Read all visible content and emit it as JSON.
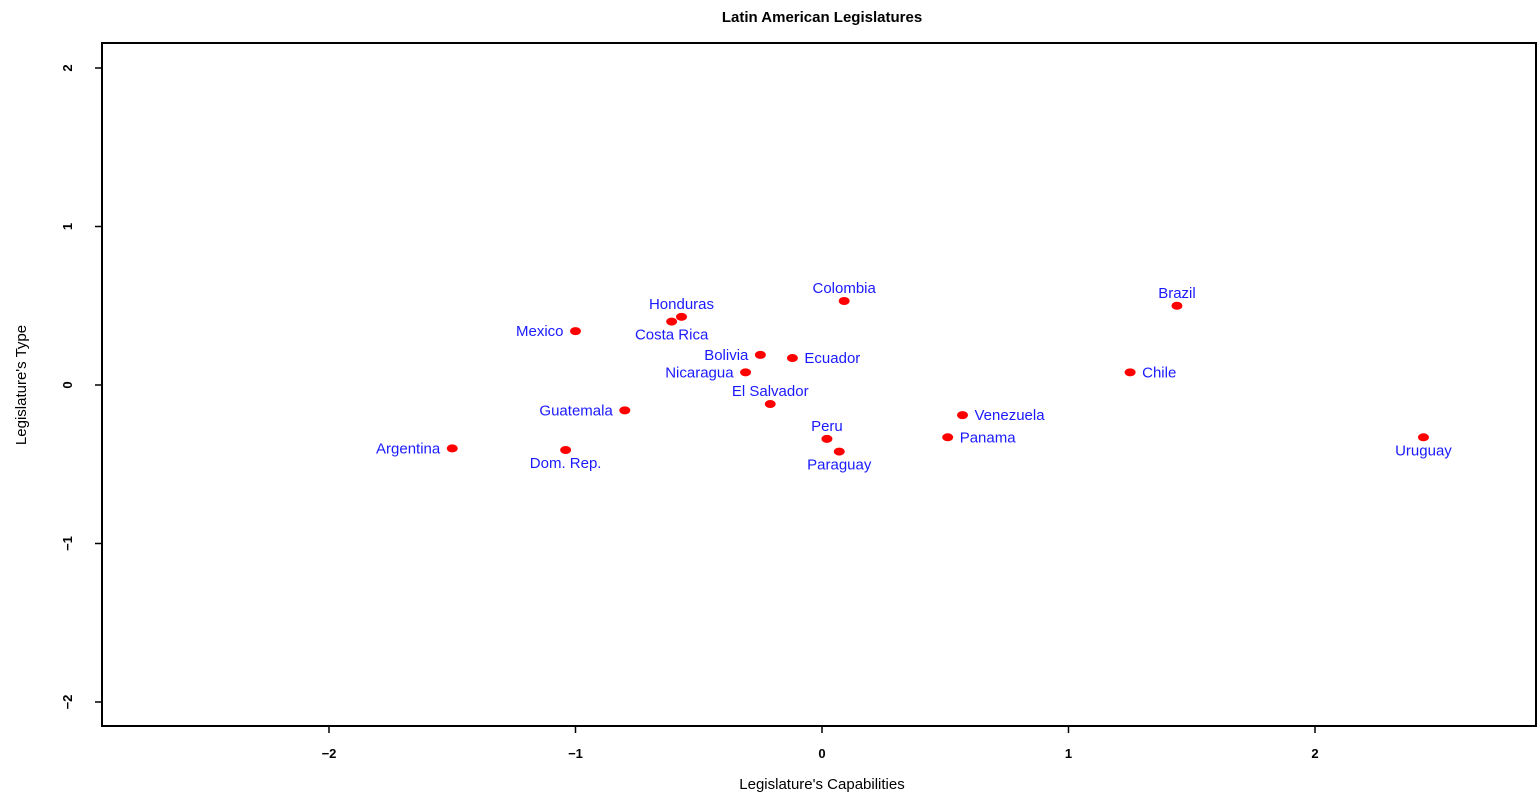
{
  "chart_data": {
    "type": "scatter",
    "title": "Latin American Legislatures",
    "xlabel": "Legislature's Capabilities",
    "ylabel": "Legislature's Type",
    "xlim": [
      -2.9,
      2.9
    ],
    "ylim": [
      -2.15,
      2.15
    ],
    "x_ticks": [
      -2,
      -1,
      0,
      1,
      2
    ],
    "y_ticks": [
      -2,
      -1,
      0,
      1,
      2
    ],
    "x_tick_labels": [
      "−2",
      "−1",
      "0",
      "1",
      "2"
    ],
    "y_tick_labels": [
      "−2",
      "−1",
      "0",
      "1",
      "2"
    ],
    "grid": false,
    "point_color": "#ff0000",
    "label_color": "#1a1aff",
    "points": [
      {
        "label": "Argentina",
        "x": -1.5,
        "y": -0.4,
        "label_pos": "left"
      },
      {
        "label": "Dom. Rep.",
        "x": -1.04,
        "y": -0.41,
        "label_pos": "below"
      },
      {
        "label": "Mexico",
        "x": -1.0,
        "y": 0.34,
        "label_pos": "left"
      },
      {
        "label": "Guatemala",
        "x": -0.8,
        "y": -0.16,
        "label_pos": "left"
      },
      {
        "label": "Honduras",
        "x": -0.57,
        "y": 0.43,
        "label_pos": "above"
      },
      {
        "label": "Costa Rica",
        "x": -0.61,
        "y": 0.4,
        "label_pos": "below"
      },
      {
        "label": "Bolivia",
        "x": -0.25,
        "y": 0.19,
        "label_pos": "left"
      },
      {
        "label": "Nicaragua",
        "x": -0.31,
        "y": 0.08,
        "label_pos": "left"
      },
      {
        "label": "El Salvador",
        "x": -0.21,
        "y": -0.12,
        "label_pos": "above"
      },
      {
        "label": "Ecuador",
        "x": -0.12,
        "y": 0.17,
        "label_pos": "right"
      },
      {
        "label": "Colombia",
        "x": 0.09,
        "y": 0.53,
        "label_pos": "above"
      },
      {
        "label": "Peru",
        "x": 0.02,
        "y": -0.34,
        "label_pos": "above"
      },
      {
        "label": "Paraguay",
        "x": 0.07,
        "y": -0.42,
        "label_pos": "below"
      },
      {
        "label": "Panama",
        "x": 0.51,
        "y": -0.33,
        "label_pos": "right"
      },
      {
        "label": "Venezuela",
        "x": 0.57,
        "y": -0.19,
        "label_pos": "right"
      },
      {
        "label": "Chile",
        "x": 1.25,
        "y": 0.08,
        "label_pos": "right"
      },
      {
        "label": "Brazil",
        "x": 1.44,
        "y": 0.5,
        "label_pos": "above"
      },
      {
        "label": "Uruguay",
        "x": 2.44,
        "y": -0.33,
        "label_pos": "below"
      }
    ]
  }
}
